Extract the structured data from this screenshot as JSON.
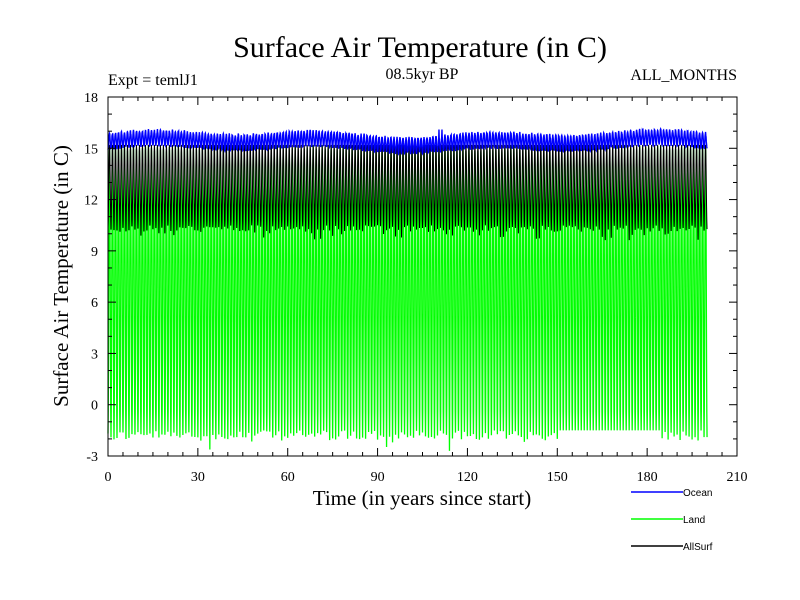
{
  "chart_data": {
    "type": "line",
    "title": "Surface Air Temperature (in C)",
    "subtitle": "08.5kyr BP",
    "experiment_label": "Expt = temlJ1",
    "months_label": "ALL_MONTHS",
    "xlabel": "Time (in years since start)",
    "ylabel": "Surface Air Temperature (in C)",
    "xlim": [
      0,
      210
    ],
    "ylim": [
      -3,
      18
    ],
    "xticks": [
      0,
      30,
      60,
      90,
      120,
      150,
      180,
      210
    ],
    "yticks": [
      -3,
      0,
      3,
      6,
      9,
      12,
      15,
      18
    ],
    "x_range": [
      0,
      200
    ],
    "legend_position": "bottom-right",
    "series": [
      {
        "name": "Ocean",
        "color": "#0000ff",
        "mean": 15.4,
        "seasonal_min": 14.9,
        "seasonal_max": 15.9,
        "peak_near_year": 111,
        "peak_value": 16.1
      },
      {
        "name": "Land",
        "color": "#00ff00",
        "seasonal_min": -1.5,
        "seasonal_max": 15.0,
        "lowest_value": -2.7,
        "highest_value": 15.3
      },
      {
        "name": "AllSurf",
        "color": "#000000",
        "seasonal_min": 10.5,
        "seasonal_max": 15.2,
        "lowest_value": 9.6
      }
    ]
  }
}
